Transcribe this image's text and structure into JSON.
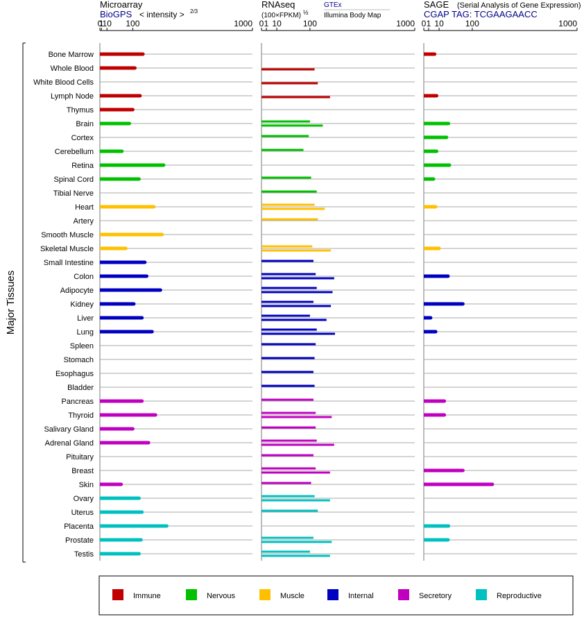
{
  "chart_data": {
    "type": "bar",
    "y_axis_title": "Major Tissues",
    "panels": [
      {
        "id": "microarray",
        "title": "Microarray",
        "subtitle_link": "BioGPS",
        "subtitle_text": "< intensity >",
        "subtitle_exponent": "2/3",
        "ticks": [
          "0",
          "1",
          "10",
          "100",
          "1000"
        ],
        "scale": "power 2/3",
        "xlim": [
          0,
          1000
        ],
        "series_count": 1
      },
      {
        "id": "rnaseq",
        "title": "RNAseq",
        "subtitle_text": "(100×FPKM)",
        "subtitle_exponent": "½",
        "source_top": "GTEx",
        "source_bottom": "Illumina Body Map",
        "ticks": [
          "0",
          "1",
          "10",
          "100",
          "1000"
        ],
        "scale": "power 1/2",
        "xlim": [
          0,
          1000
        ],
        "series_count": 2
      },
      {
        "id": "sage",
        "title": "SAGE",
        "title_note": "(Serial Analysis of Gene Expression)",
        "subtitle_text": "CGAP TAG: TCGAAGAACC",
        "ticks": [
          "0",
          "1",
          "10",
          "100",
          "1000"
        ],
        "scale": "power 1/2",
        "xlim": [
          0,
          1000
        ],
        "series_count": 1
      }
    ],
    "groups": [
      {
        "key": "immune",
        "label": "Immune",
        "color": "#c00000"
      },
      {
        "key": "nervous",
        "label": "Nervous",
        "color": "#00c000"
      },
      {
        "key": "muscle",
        "label": "Muscle",
        "color": "#ffc000"
      },
      {
        "key": "internal",
        "label": "Internal",
        "color": "#0000c0"
      },
      {
        "key": "secretory",
        "label": "Secretory",
        "color": "#c000c0"
      },
      {
        "key": "reproductive",
        "label": "Reproductive",
        "color": "#00c0c0"
      }
    ],
    "tissues": [
      {
        "name": "Bone Marrow",
        "group": "immune",
        "microarray": 150,
        "rnaseq": [
          null,
          null
        ],
        "sage": 5
      },
      {
        "name": "Whole Blood",
        "group": "immune",
        "microarray": 110,
        "rnaseq": [
          null,
          120
        ],
        "sage": null
      },
      {
        "name": "White Blood Cells",
        "group": "immune",
        "microarray": null,
        "rnaseq": [
          null,
          135
        ],
        "sage": null
      },
      {
        "name": "Lymph Node",
        "group": "immune",
        "microarray": 135,
        "rnaseq": [
          null,
          200
        ],
        "sage": 7
      },
      {
        "name": "Thymus",
        "group": "immune",
        "microarray": 100,
        "rnaseq": [
          null,
          null
        ],
        "sage": null
      },
      {
        "name": "Brain",
        "group": "nervous",
        "microarray": 85,
        "rnaseq": [
          100,
          160
        ],
        "sage": 26
      },
      {
        "name": "Cortex",
        "group": "nervous",
        "microarray": null,
        "rnaseq": [
          95,
          null
        ],
        "sage": 22
      },
      {
        "name": "Cerebellum",
        "group": "nervous",
        "microarray": 55,
        "rnaseq": [
          75,
          null
        ],
        "sage": 7
      },
      {
        "name": "Retina",
        "group": "nervous",
        "microarray": 270,
        "rnaseq": [
          null,
          null
        ],
        "sage": 28
      },
      {
        "name": "Spinal Cord",
        "group": "nervous",
        "microarray": 130,
        "rnaseq": [
          105,
          null
        ],
        "sage": 4
      },
      {
        "name": "Tibial Nerve",
        "group": "nervous",
        "microarray": null,
        "rnaseq": [
          130,
          null
        ],
        "sage": null
      },
      {
        "name": "Heart",
        "group": "muscle",
        "microarray": 210,
        "rnaseq": [
          120,
          170
        ],
        "sage": 6
      },
      {
        "name": "Artery",
        "group": "muscle",
        "microarray": null,
        "rnaseq": [
          135,
          null
        ],
        "sage": null
      },
      {
        "name": "Smooth Muscle",
        "group": "muscle",
        "microarray": 260,
        "rnaseq": [
          null,
          null
        ],
        "sage": null
      },
      {
        "name": "Skeletal Muscle",
        "group": "muscle",
        "microarray": 70,
        "rnaseq": [
          110,
          205
        ],
        "sage": 10
      },
      {
        "name": "Small Intestine",
        "group": "internal",
        "microarray": 160,
        "rnaseq": [
          115,
          null
        ],
        "sage": null
      },
      {
        "name": "Colon",
        "group": "internal",
        "microarray": 170,
        "rnaseq": [
          125,
          225
        ],
        "sage": 25
      },
      {
        "name": "Adipocyte",
        "group": "internal",
        "microarray": 250,
        "rnaseq": [
          130,
          215
        ],
        "sage": null
      },
      {
        "name": "Kidney",
        "group": "internal",
        "microarray": 105,
        "rnaseq": [
          115,
          205
        ],
        "sage": 65
      },
      {
        "name": "Liver",
        "group": "internal",
        "microarray": 145,
        "rnaseq": [
          100,
          180
        ],
        "sage": 2
      },
      {
        "name": "Lung",
        "group": "internal",
        "microarray": 200,
        "rnaseq": [
          130,
          230
        ],
        "sage": 6
      },
      {
        "name": "Spleen",
        "group": "internal",
        "microarray": null,
        "rnaseq": [
          125,
          null
        ],
        "sage": null
      },
      {
        "name": "Stomach",
        "group": "internal",
        "microarray": null,
        "rnaseq": [
          120,
          null
        ],
        "sage": null
      },
      {
        "name": "Esophagus",
        "group": "internal",
        "microarray": null,
        "rnaseq": [
          115,
          null
        ],
        "sage": null
      },
      {
        "name": "Bladder",
        "group": "internal",
        "microarray": null,
        "rnaseq": [
          120,
          null
        ],
        "sage": null
      },
      {
        "name": "Pancreas",
        "group": "secretory",
        "microarray": 145,
        "rnaseq": [
          115,
          null
        ],
        "sage": 18
      },
      {
        "name": "Thyroid",
        "group": "secretory",
        "microarray": 220,
        "rnaseq": [
          125,
          210
        ],
        "sage": 18
      },
      {
        "name": "Salivary Gland",
        "group": "secretory",
        "microarray": 100,
        "rnaseq": [
          125,
          null
        ],
        "sage": null
      },
      {
        "name": "Adrenal Gland",
        "group": "secretory",
        "microarray": 180,
        "rnaseq": [
          130,
          225
        ],
        "sage": null
      },
      {
        "name": "Pituitary",
        "group": "secretory",
        "microarray": null,
        "rnaseq": [
          115,
          null
        ],
        "sage": null
      },
      {
        "name": "Breast",
        "group": "secretory",
        "microarray": null,
        "rnaseq": [
          125,
          200
        ],
        "sage": 65
      },
      {
        "name": "Skin",
        "group": "secretory",
        "microarray": 52,
        "rnaseq": [
          105,
          null
        ],
        "sage": 200
      },
      {
        "name": "Ovary",
        "group": "reproductive",
        "microarray": 130,
        "rnaseq": [
          120,
          200
        ],
        "sage": null
      },
      {
        "name": "Uterus",
        "group": "reproductive",
        "microarray": 145,
        "rnaseq": [
          135,
          null
        ],
        "sage": null
      },
      {
        "name": "Placenta",
        "group": "reproductive",
        "microarray": 290,
        "rnaseq": [
          null,
          null
        ],
        "sage": 26
      },
      {
        "name": "Prostate",
        "group": "reproductive",
        "microarray": 140,
        "rnaseq": [
          115,
          210
        ],
        "sage": 25
      },
      {
        "name": "Testis",
        "group": "reproductive",
        "microarray": 130,
        "rnaseq": [
          100,
          200
        ],
        "sage": null
      }
    ]
  }
}
